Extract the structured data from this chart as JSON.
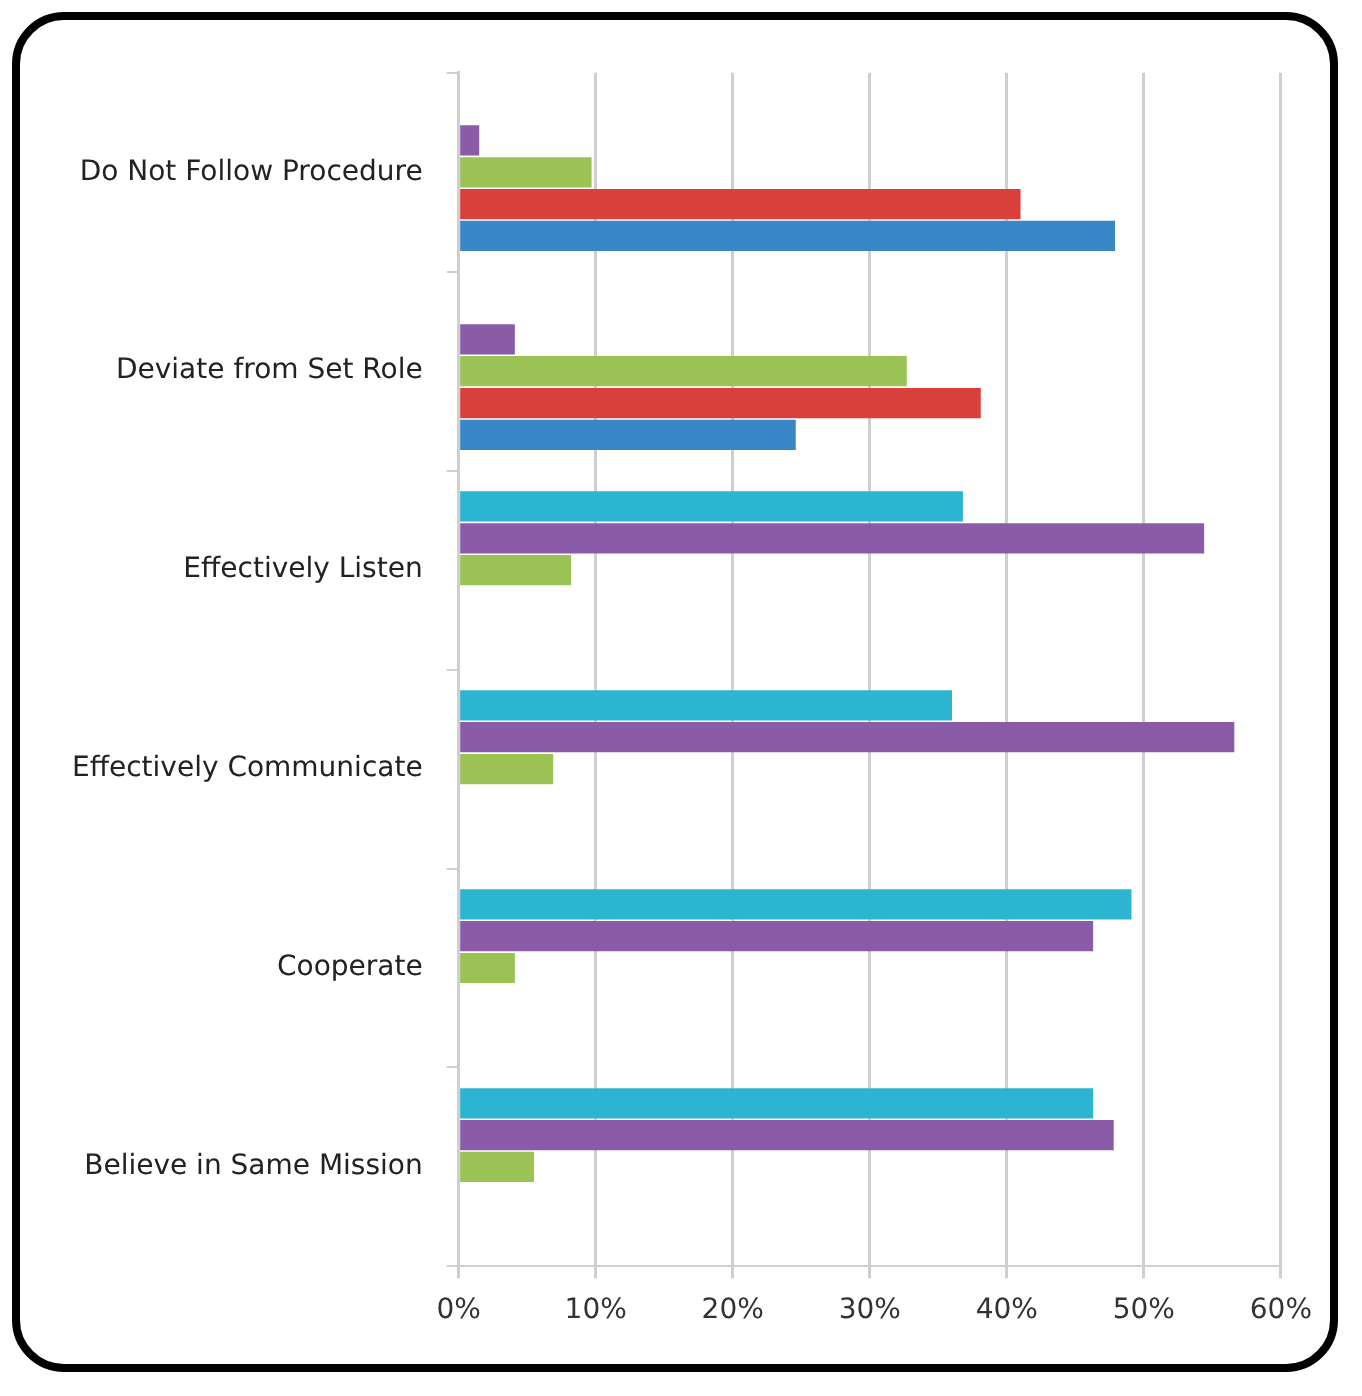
{
  "chart_data": {
    "type": "bar",
    "orientation": "horizontal",
    "categories": [
      "Do Not Follow Procedure",
      "Deviate from Set Role",
      "Effectively Listen",
      "Effectively Communicate",
      "Cooperate",
      "Believe in Same Mission"
    ],
    "series": [
      {
        "color": "#2bb5d0",
        "values": [
          null,
          null,
          36.8,
          36,
          49.1,
          46.3
        ]
      },
      {
        "color": "#8a5ca8",
        "values": [
          1.5,
          4.1,
          54.4,
          56.6,
          46.3,
          47.8
        ]
      },
      {
        "color": "#9bc255",
        "values": [
          9.7,
          32.7,
          8.2,
          6.9,
          4.1,
          5.5
        ]
      },
      {
        "color": "#d9403b",
        "values": [
          41,
          38.1,
          null,
          null,
          null,
          null
        ]
      },
      {
        "color": "#3a87c8",
        "values": [
          47.9,
          24.6,
          null,
          null,
          null,
          null
        ]
      }
    ],
    "xlim": [
      0,
      60
    ],
    "xticks": [
      {
        "value": 0,
        "label": "0%"
      },
      {
        "value": 10,
        "label": "10%"
      },
      {
        "value": 20,
        "label": "20%"
      },
      {
        "value": 30,
        "label": "30%"
      },
      {
        "value": 40,
        "label": "40%"
      },
      {
        "value": 50,
        "label": "50%"
      },
      {
        "value": 60,
        "label": "60%"
      }
    ],
    "grid": "x",
    "legend": false
  }
}
